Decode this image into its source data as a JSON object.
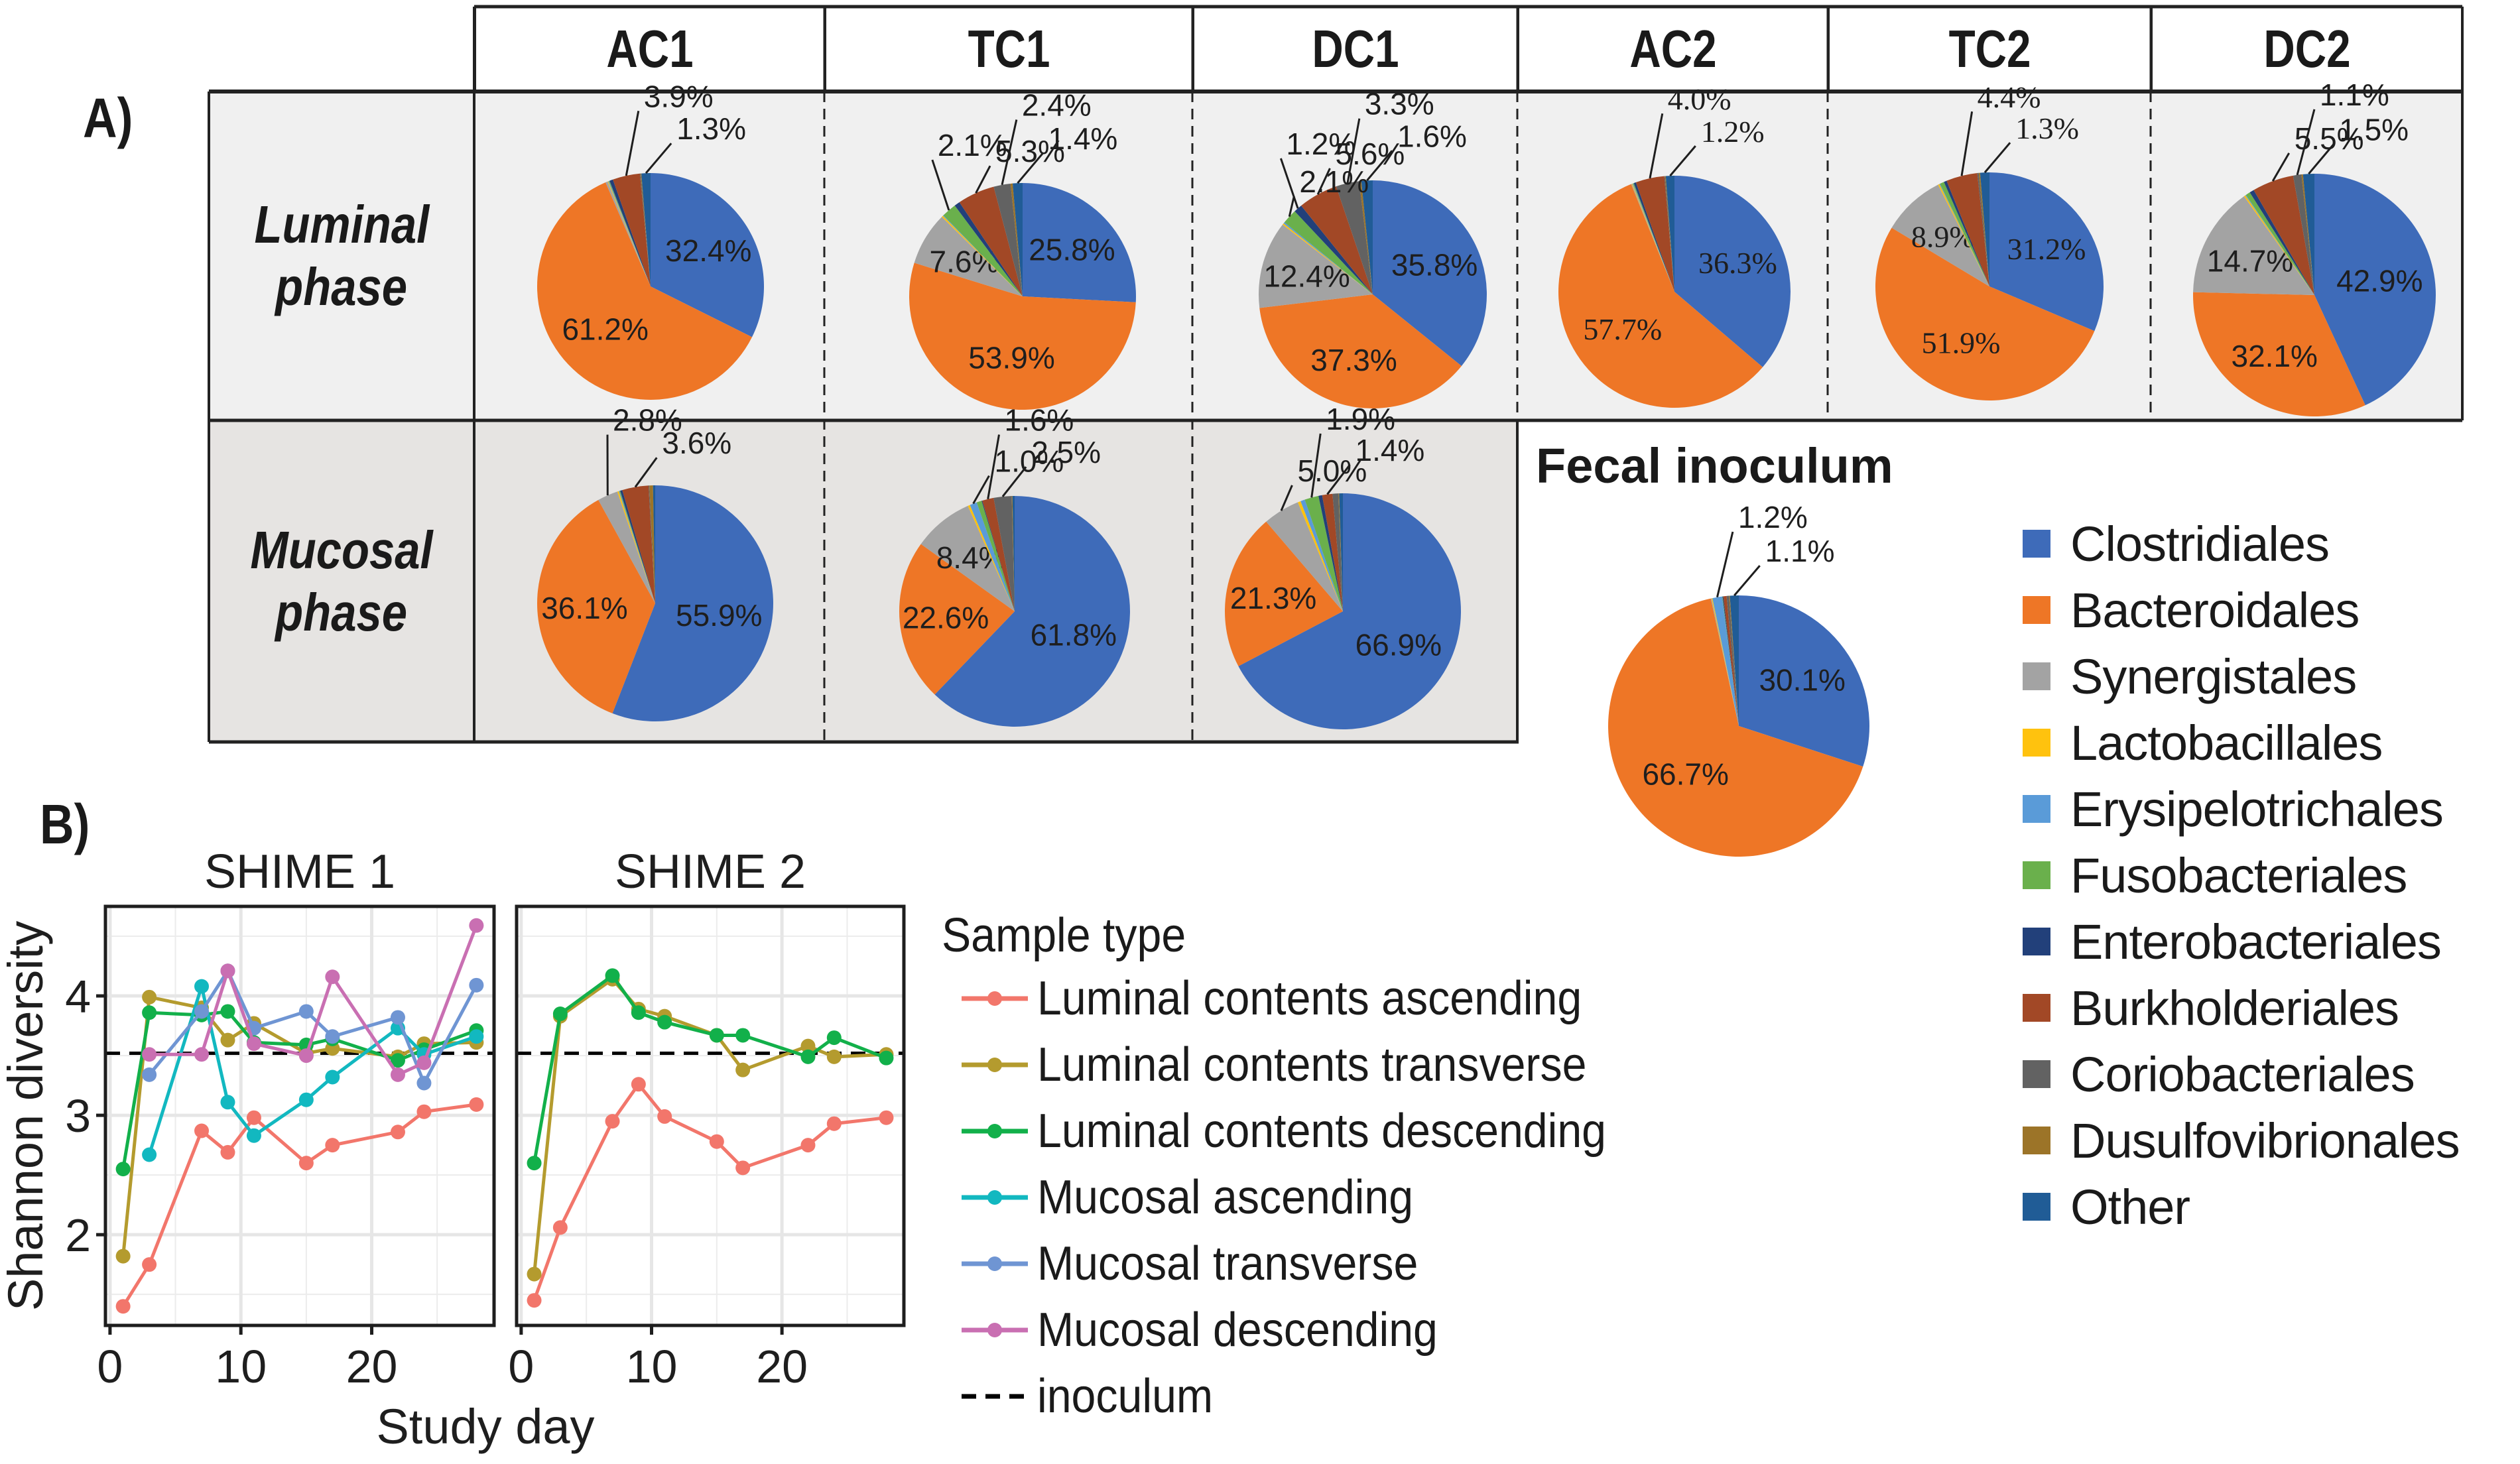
{
  "panel_a": {
    "label": "A)",
    "columns": [
      "AC1",
      "TC1",
      "DC1",
      "AC2",
      "TC2",
      "DC2"
    ],
    "rows": [
      {
        "label_line1": "Luminal",
        "label_line2": "phase"
      },
      {
        "label_line1": "Mucosal",
        "label_line2": "phase"
      }
    ],
    "fecal_title": "Fecal inoculum"
  },
  "legend_a": {
    "items": [
      {
        "label": "Clostridiales",
        "color": "#3e6bb9"
      },
      {
        "label": "Bacteroidales",
        "color": "#ee7626"
      },
      {
        "label": "Synergistales",
        "color": "#a3a3a3"
      },
      {
        "label": "Lactobacillales",
        "color": "#ffc20e"
      },
      {
        "label": "Erysipelotrichales",
        "color": "#5a9bd8"
      },
      {
        "label": "Fusobacteriales",
        "color": "#6ab04c"
      },
      {
        "label": "Enterobacteriales",
        "color": "#22407a"
      },
      {
        "label": "Burkholderiales",
        "color": "#a24826"
      },
      {
        "label": "Coriobacteriales",
        "color": "#626262"
      },
      {
        "label": "Dusulfovibrionales",
        "color": "#9c7428"
      },
      {
        "label": "Other",
        "color": "#205c96"
      }
    ]
  },
  "panel_b": {
    "label": "B)",
    "legend_title": "Sample type",
    "inoculum_label": "inoculum"
  },
  "chart_data": [
    {
      "type": "pie",
      "id": "luminal-ac1",
      "title": "Luminal phase AC1",
      "categories": [
        "Clostridiales",
        "Bacteroidales",
        "Synergistales",
        "Lactobacillales",
        "Erysipelotrichales",
        "Fusobacteriales",
        "Enterobacteriales",
        "Burkholderiales",
        "Coriobacteriales",
        "Dusulfovibrionales",
        "Other"
      ],
      "values": [
        32.4,
        61.2,
        0.3,
        0.1,
        0.1,
        0.1,
        0.5,
        3.9,
        0.1,
        0.1,
        1.3
      ],
      "labels": [
        "32.4%",
        "61.2%",
        null,
        null,
        null,
        null,
        null,
        "3.9%",
        null,
        null,
        "1.3%"
      ]
    },
    {
      "type": "pie",
      "id": "luminal-tc1",
      "title": "Luminal phase TC1",
      "categories": [
        "Clostridiales",
        "Bacteroidales",
        "Synergistales",
        "Lactobacillales",
        "Erysipelotrichales",
        "Fusobacteriales",
        "Enterobacteriales",
        "Burkholderiales",
        "Coriobacteriales",
        "Dusulfovibrionales",
        "Other"
      ],
      "values": [
        25.8,
        53.9,
        7.6,
        0.2,
        0.1,
        2.1,
        0.8,
        5.3,
        2.4,
        0.3,
        1.4
      ],
      "labels": [
        "25.8%",
        "53.9%",
        "7.6%",
        null,
        null,
        "2.1%",
        null,
        "5.3%",
        "2.4%",
        null,
        "1.4%"
      ]
    },
    {
      "type": "pie",
      "id": "luminal-dc1",
      "title": "Luminal phase DC1",
      "categories": [
        "Clostridiales",
        "Bacteroidales",
        "Synergistales",
        "Lactobacillales",
        "Erysipelotrichales",
        "Fusobacteriales",
        "Enterobacteriales",
        "Burkholderiales",
        "Coriobacteriales",
        "Dusulfovibrionales",
        "Other"
      ],
      "values": [
        35.8,
        37.3,
        12.4,
        0.2,
        0.2,
        2.1,
        1.2,
        5.6,
        3.3,
        0.3,
        1.6
      ],
      "labels": [
        "35.8%",
        "37.3%",
        "12.4%",
        null,
        null,
        "2.1%",
        "1.2%",
        "5.6%",
        "3.3%",
        null,
        "1.6%"
      ]
    },
    {
      "type": "pie",
      "id": "luminal-ac2",
      "title": "Luminal phase AC2",
      "categories": [
        "Clostridiales",
        "Bacteroidales",
        "Synergistales",
        "Lactobacillales",
        "Erysipelotrichales",
        "Fusobacteriales",
        "Enterobacteriales",
        "Burkholderiales",
        "Coriobacteriales",
        "Dusulfovibrionales",
        "Other"
      ],
      "values": [
        36.3,
        57.7,
        0.1,
        0.1,
        0.1,
        0.1,
        0.3,
        4.0,
        0.1,
        0.1,
        1.2
      ],
      "labels": [
        "36.3%",
        "57.7%",
        null,
        null,
        null,
        null,
        null,
        "4.0%",
        null,
        null,
        "1.2%"
      ]
    },
    {
      "type": "pie",
      "id": "luminal-tc2",
      "title": "Luminal phase TC2",
      "categories": [
        "Clostridiales",
        "Bacteroidales",
        "Synergistales",
        "Lactobacillales",
        "Erysipelotrichales",
        "Fusobacteriales",
        "Enterobacteriales",
        "Burkholderiales",
        "Coriobacteriales",
        "Dusulfovibrionales",
        "Other"
      ],
      "values": [
        31.2,
        51.9,
        8.9,
        0.2,
        0.1,
        0.6,
        0.4,
        4.4,
        0.2,
        0.2,
        1.3
      ],
      "labels": [
        "31.2%",
        "51.9%",
        "8.9%",
        null,
        null,
        null,
        null,
        "4.4%",
        null,
        null,
        "1.3%"
      ]
    },
    {
      "type": "pie",
      "id": "luminal-dc2",
      "title": "Luminal phase DC2",
      "categories": [
        "Clostridiales",
        "Bacteroidales",
        "Synergistales",
        "Lactobacillales",
        "Erysipelotrichales",
        "Fusobacteriales",
        "Enterobacteriales",
        "Burkholderiales",
        "Coriobacteriales",
        "Dusulfovibrionales",
        "Other"
      ],
      "values": [
        42.9,
        32.1,
        14.7,
        0.2,
        0.1,
        0.6,
        0.6,
        5.5,
        1.1,
        0.2,
        1.5
      ],
      "labels": [
        "42.9%",
        "32.1%",
        "14.7%",
        null,
        null,
        null,
        null,
        "5.5%",
        "1.1%",
        null,
        "1.5%"
      ]
    },
    {
      "type": "pie",
      "id": "mucosal-ac1",
      "title": "Mucosal phase AC1",
      "categories": [
        "Clostridiales",
        "Bacteroidales",
        "Synergistales",
        "Lactobacillales",
        "Erysipelotrichales",
        "Fusobacteriales",
        "Enterobacteriales",
        "Burkholderiales",
        "Coriobacteriales",
        "Dusulfovibrionales",
        "Other"
      ],
      "values": [
        55.9,
        36.1,
        2.8,
        0.2,
        0.1,
        0.1,
        0.3,
        3.6,
        0.1,
        0.5,
        0.3
      ],
      "labels": [
        "55.9%",
        "36.1%",
        "2.8%",
        null,
        null,
        null,
        null,
        "3.6%",
        null,
        null,
        null
      ]
    },
    {
      "type": "pie",
      "id": "mucosal-tc1",
      "title": "Mucosal phase TC1",
      "categories": [
        "Clostridiales",
        "Bacteroidales",
        "Synergistales",
        "Lactobacillales",
        "Erysipelotrichales",
        "Fusobacteriales",
        "Enterobacteriales",
        "Burkholderiales",
        "Coriobacteriales",
        "Dusulfovibrionales",
        "Other"
      ],
      "values": [
        61.8,
        22.6,
        8.4,
        0.3,
        1.0,
        0.7,
        0.1,
        1.6,
        2.5,
        0.1,
        0.3
      ],
      "labels": [
        "61.8%",
        "22.6%",
        "8.4%",
        null,
        "1.0%",
        null,
        null,
        "1.6%",
        "2.5%",
        null,
        null
      ]
    },
    {
      "type": "pie",
      "id": "mucosal-dc1",
      "title": "Mucosal phase DC1",
      "categories": [
        "Clostridiales",
        "Bacteroidales",
        "Synergistales",
        "Lactobacillales",
        "Erysipelotrichales",
        "Fusobacteriales",
        "Enterobacteriales",
        "Burkholderiales",
        "Coriobacteriales",
        "Dusulfovibrionales",
        "Other"
      ],
      "values": [
        66.9,
        21.3,
        5.0,
        0.4,
        0.6,
        1.9,
        0.5,
        1.4,
        0.8,
        0.1,
        0.5
      ],
      "labels": [
        "66.9%",
        "21.3%",
        "5.0%",
        null,
        null,
        "1.9%",
        null,
        "1.4%",
        null,
        null,
        null
      ]
    },
    {
      "type": "pie",
      "id": "fecal-inoculum",
      "title": "Fecal inoculum",
      "categories": [
        "Clostridiales",
        "Bacteroidales",
        "Synergistales",
        "Lactobacillales",
        "Erysipelotrichales",
        "Fusobacteriales",
        "Enterobacteriales",
        "Burkholderiales",
        "Coriobacteriales",
        "Dusulfovibrionales",
        "Other"
      ],
      "values": [
        30.1,
        66.7,
        0.1,
        0.1,
        1.2,
        0.05,
        0.1,
        0.4,
        0.3,
        0.1,
        1.1
      ],
      "labels": [
        "30.1%",
        "66.7%",
        null,
        null,
        "1.2%",
        null,
        null,
        null,
        null,
        null,
        "1.1%"
      ]
    },
    {
      "type": "line",
      "id": "shannon",
      "facets": [
        "SHIME 1",
        "SHIME 2"
      ],
      "xlabel": "Study day",
      "ylabel": "Shannon diversity",
      "xlim": [
        -0.35,
        29.35
      ],
      "ylim": [
        1.24,
        4.75
      ],
      "xticks": [
        0,
        10,
        20
      ],
      "yticks": [
        2,
        3,
        4
      ],
      "grid": true,
      "hline": {
        "name": "inoculum",
        "y": 3.52,
        "style": "dashed",
        "color": "#000000"
      },
      "legend_position": "right",
      "series": [
        {
          "name": "Luminal contents ascending",
          "color": "#f2766b",
          "facet_data": [
            {
              "x": [
                1,
                3,
                7,
                9,
                11,
                15,
                17,
                22,
                24,
                28
              ],
              "y": [
                1.4,
                1.75,
                2.87,
                2.69,
                2.98,
                2.6,
                2.75,
                2.86,
                3.03,
                3.09
              ]
            },
            {
              "x": [
                1,
                3,
                7,
                9,
                11,
                15,
                17,
                22,
                24,
                28
              ],
              "y": [
                1.45,
                2.06,
                2.95,
                3.26,
                2.99,
                2.78,
                2.56,
                2.75,
                2.93,
                2.98
              ]
            }
          ]
        },
        {
          "name": "Luminal contents transverse",
          "color": "#b49b2e",
          "facet_data": [
            {
              "x": [
                1,
                3,
                7,
                9,
                11,
                15,
                17,
                22,
                24,
                28
              ],
              "y": [
                1.82,
                3.99,
                3.9,
                3.63,
                3.77,
                3.52,
                3.56,
                3.49,
                3.6,
                3.61
              ]
            },
            {
              "x": [
                1,
                3,
                7,
                9,
                11,
                15,
                17,
                22,
                24,
                28
              ],
              "y": [
                1.67,
                3.83,
                4.14,
                3.89,
                3.83,
                3.67,
                3.38,
                3.58,
                3.49,
                3.51
              ]
            }
          ]
        },
        {
          "name": "Luminal contents descending",
          "color": "#12b04a",
          "facet_data": [
            {
              "x": [
                1,
                3,
                7,
                9,
                11,
                15,
                17,
                22,
                24,
                28
              ],
              "y": [
                2.55,
                3.86,
                3.84,
                3.87,
                3.61,
                3.59,
                3.64,
                3.46,
                3.55,
                3.71
              ]
            },
            {
              "x": [
                1,
                3,
                7,
                9,
                11,
                15,
                17,
                22,
                24,
                28
              ],
              "y": [
                2.6,
                3.85,
                4.17,
                3.86,
                3.78,
                3.67,
                3.67,
                3.49,
                3.65,
                3.48
              ]
            }
          ]
        },
        {
          "name": "Mucosal ascending",
          "color": "#12b8c0",
          "facet_data": [
            {
              "x": [
                3,
                7,
                9,
                11,
                15,
                17,
                22,
                24,
                28
              ],
              "y": [
                2.67,
                4.08,
                3.11,
                2.83,
                3.13,
                3.32,
                3.73,
                3.51,
                3.66
              ]
            },
            {
              "x": [],
              "y": []
            }
          ]
        },
        {
          "name": "Mucosal transverse",
          "color": "#6f95d3",
          "facet_data": [
            {
              "x": [
                3,
                7,
                9,
                11,
                15,
                17,
                22,
                24,
                28
              ],
              "y": [
                3.34,
                3.87,
                4.21,
                3.73,
                3.87,
                3.66,
                3.82,
                3.27,
                4.09
              ]
            },
            {
              "x": [],
              "y": []
            }
          ]
        },
        {
          "name": "Mucosal descending",
          "color": "#c96fb2",
          "facet_data": [
            {
              "x": [
                3,
                7,
                9,
                11,
                15,
                17,
                22,
                24,
                28
              ],
              "y": [
                3.51,
                3.51,
                4.21,
                3.6,
                3.5,
                4.16,
                3.34,
                3.44,
                4.59
              ]
            },
            {
              "x": [],
              "y": []
            }
          ]
        }
      ]
    }
  ]
}
